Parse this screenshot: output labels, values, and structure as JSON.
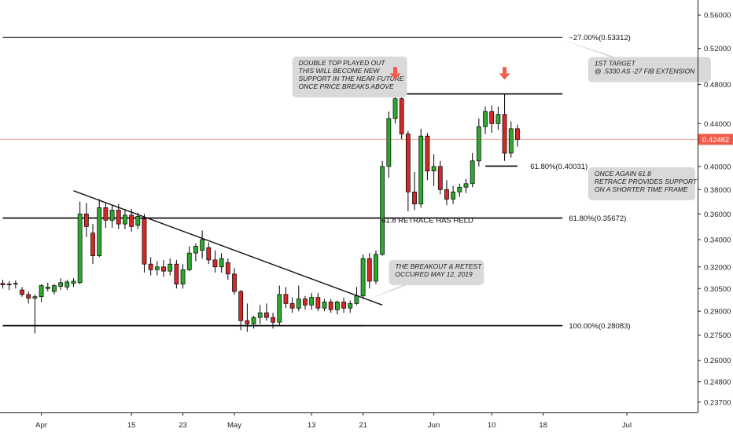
{
  "chart_data": {
    "type": "candlestick",
    "colors": {
      "up": "#2ea82e",
      "down": "#d62828",
      "candle_outline": "#000000",
      "current_price_line": "#f2a38f",
      "price_badge": "#f05a4a",
      "arrow": "#f05a4a",
      "note_bg": "#d9d9d9",
      "level_line": "#000000"
    },
    "y_axis": {
      "scale": "log",
      "range": [
        0.232,
        0.575
      ],
      "tick_labels": [
        "0.56000",
        "0.52000",
        "0.48000",
        "0.44000",
        "0.40000",
        "0.38000",
        "0.36000",
        "0.34000",
        "0.32000",
        "0.30500",
        "0.29000",
        "0.27500",
        "0.26000",
        "0.24800",
        "0.23700"
      ]
    },
    "x_axis": {
      "range": [
        "2019-03-26",
        "2019-07-12"
      ],
      "ticks": [
        {
          "label": "Apr",
          "date": "2019-04-01"
        },
        {
          "label": "15",
          "date": "2019-04-15"
        },
        {
          "label": "23",
          "date": "2019-04-23"
        },
        {
          "label": "May",
          "date": "2019-05-01"
        },
        {
          "label": "13",
          "date": "2019-05-13"
        },
        {
          "label": "21",
          "date": "2019-05-21"
        },
        {
          "label": "Jun",
          "date": "2019-06-01"
        },
        {
          "label": "10",
          "date": "2019-06-10"
        },
        {
          "label": "18",
          "date": "2019-06-18"
        },
        {
          "label": "Jul",
          "date": "2019-07-01"
        }
      ]
    },
    "current_price": {
      "label": "0.42482",
      "value": 0.42482
    },
    "candles": [
      {
        "date": "2019-03-26",
        "o": 0.3085,
        "h": 0.311,
        "l": 0.305,
        "c": 0.3075
      },
      {
        "date": "2019-03-27",
        "o": 0.3075,
        "h": 0.31,
        "l": 0.304,
        "c": 0.308
      },
      {
        "date": "2019-03-28",
        "o": 0.308,
        "h": 0.3105,
        "l": 0.305,
        "c": 0.3085
      },
      {
        "date": "2019-03-29",
        "o": 0.304,
        "h": 0.306,
        "l": 0.2995,
        "c": 0.301
      },
      {
        "date": "2019-03-30",
        "o": 0.301,
        "h": 0.303,
        "l": 0.295,
        "c": 0.2985
      },
      {
        "date": "2019-03-31",
        "o": 0.2985,
        "h": 0.301,
        "l": 0.276,
        "c": 0.2995
      },
      {
        "date": "2019-04-01",
        "o": 0.2995,
        "h": 0.308,
        "l": 0.296,
        "c": 0.307
      },
      {
        "date": "2019-04-02",
        "o": 0.305,
        "h": 0.309,
        "l": 0.303,
        "c": 0.306
      },
      {
        "date": "2019-04-03",
        "o": 0.303,
        "h": 0.308,
        "l": 0.301,
        "c": 0.307
      },
      {
        "date": "2019-04-04",
        "o": 0.3065,
        "h": 0.312,
        "l": 0.304,
        "c": 0.309
      },
      {
        "date": "2019-04-05",
        "o": 0.306,
        "h": 0.311,
        "l": 0.304,
        "c": 0.3095
      },
      {
        "date": "2019-04-06",
        "o": 0.3085,
        "h": 0.312,
        "l": 0.306,
        "c": 0.31
      },
      {
        "date": "2019-04-07",
        "o": 0.309,
        "h": 0.37,
        "l": 0.308,
        "c": 0.36
      },
      {
        "date": "2019-04-08",
        "o": 0.36,
        "h": 0.369,
        "l": 0.342,
        "c": 0.35
      },
      {
        "date": "2019-04-09",
        "o": 0.345,
        "h": 0.352,
        "l": 0.322,
        "c": 0.328
      },
      {
        "date": "2019-04-10",
        "o": 0.328,
        "h": 0.372,
        "l": 0.327,
        "c": 0.365
      },
      {
        "date": "2019-04-11",
        "o": 0.365,
        "h": 0.369,
        "l": 0.349,
        "c": 0.355
      },
      {
        "date": "2019-04-12",
        "o": 0.355,
        "h": 0.367,
        "l": 0.349,
        "c": 0.363
      },
      {
        "date": "2019-04-13",
        "o": 0.363,
        "h": 0.368,
        "l": 0.348,
        "c": 0.352
      },
      {
        "date": "2019-04-14",
        "o": 0.352,
        "h": 0.364,
        "l": 0.348,
        "c": 0.359
      },
      {
        "date": "2019-04-15",
        "o": 0.359,
        "h": 0.364,
        "l": 0.346,
        "c": 0.35
      },
      {
        "date": "2019-04-16",
        "o": 0.351,
        "h": 0.361,
        "l": 0.348,
        "c": 0.358
      },
      {
        "date": "2019-04-17",
        "o": 0.356,
        "h": 0.36,
        "l": 0.316,
        "c": 0.322
      },
      {
        "date": "2019-04-18",
        "o": 0.322,
        "h": 0.327,
        "l": 0.314,
        "c": 0.318
      },
      {
        "date": "2019-04-19",
        "o": 0.318,
        "h": 0.324,
        "l": 0.314,
        "c": 0.32
      },
      {
        "date": "2019-04-20",
        "o": 0.32,
        "h": 0.325,
        "l": 0.313,
        "c": 0.317
      },
      {
        "date": "2019-04-21",
        "o": 0.317,
        "h": 0.326,
        "l": 0.314,
        "c": 0.322
      },
      {
        "date": "2019-04-22",
        "o": 0.322,
        "h": 0.325,
        "l": 0.305,
        "c": 0.308
      },
      {
        "date": "2019-04-23",
        "o": 0.308,
        "h": 0.322,
        "l": 0.305,
        "c": 0.318
      },
      {
        "date": "2019-04-24",
        "o": 0.318,
        "h": 0.335,
        "l": 0.317,
        "c": 0.33
      },
      {
        "date": "2019-04-25",
        "o": 0.33,
        "h": 0.337,
        "l": 0.324,
        "c": 0.335
      },
      {
        "date": "2019-04-26",
        "o": 0.332,
        "h": 0.347,
        "l": 0.326,
        "c": 0.34
      },
      {
        "date": "2019-04-27",
        "o": 0.334,
        "h": 0.338,
        "l": 0.322,
        "c": 0.325
      },
      {
        "date": "2019-04-28",
        "o": 0.325,
        "h": 0.332,
        "l": 0.316,
        "c": 0.32
      },
      {
        "date": "2019-04-29",
        "o": 0.32,
        "h": 0.33,
        "l": 0.316,
        "c": 0.326
      },
      {
        "date": "2019-04-30",
        "o": 0.323,
        "h": 0.326,
        "l": 0.311,
        "c": 0.315
      },
      {
        "date": "2019-05-01",
        "o": 0.315,
        "h": 0.319,
        "l": 0.301,
        "c": 0.303
      },
      {
        "date": "2019-05-02",
        "o": 0.303,
        "h": 0.304,
        "l": 0.278,
        "c": 0.284
      },
      {
        "date": "2019-05-03",
        "o": 0.284,
        "h": 0.295,
        "l": 0.277,
        "c": 0.282
      },
      {
        "date": "2019-05-04",
        "o": 0.282,
        "h": 0.287,
        "l": 0.279,
        "c": 0.286
      },
      {
        "date": "2019-05-05",
        "o": 0.286,
        "h": 0.294,
        "l": 0.282,
        "c": 0.289
      },
      {
        "date": "2019-05-06",
        "o": 0.289,
        "h": 0.295,
        "l": 0.284,
        "c": 0.286
      },
      {
        "date": "2019-05-07",
        "o": 0.286,
        "h": 0.289,
        "l": 0.279,
        "c": 0.283
      },
      {
        "date": "2019-05-08",
        "o": 0.283,
        "h": 0.307,
        "l": 0.281,
        "c": 0.301
      },
      {
        "date": "2019-05-09",
        "o": 0.301,
        "h": 0.306,
        "l": 0.292,
        "c": 0.295
      },
      {
        "date": "2019-05-10",
        "o": 0.295,
        "h": 0.299,
        "l": 0.289,
        "c": 0.292
      },
      {
        "date": "2019-05-11",
        "o": 0.292,
        "h": 0.307,
        "l": 0.29,
        "c": 0.298
      },
      {
        "date": "2019-05-12",
        "o": 0.298,
        "h": 0.3,
        "l": 0.291,
        "c": 0.294
      },
      {
        "date": "2019-05-13",
        "o": 0.294,
        "h": 0.302,
        "l": 0.291,
        "c": 0.299
      },
      {
        "date": "2019-05-14",
        "o": 0.299,
        "h": 0.302,
        "l": 0.29,
        "c": 0.292
      },
      {
        "date": "2019-05-15",
        "o": 0.292,
        "h": 0.298,
        "l": 0.29,
        "c": 0.296
      },
      {
        "date": "2019-05-16",
        "o": 0.296,
        "h": 0.298,
        "l": 0.289,
        "c": 0.291
      },
      {
        "date": "2019-05-17",
        "o": 0.291,
        "h": 0.297,
        "l": 0.288,
        "c": 0.296
      },
      {
        "date": "2019-05-18",
        "o": 0.296,
        "h": 0.299,
        "l": 0.289,
        "c": 0.292
      },
      {
        "date": "2019-05-19",
        "o": 0.292,
        "h": 0.297,
        "l": 0.289,
        "c": 0.295
      },
      {
        "date": "2019-05-20",
        "o": 0.295,
        "h": 0.306,
        "l": 0.294,
        "c": 0.3
      },
      {
        "date": "2019-05-21",
        "o": 0.3,
        "h": 0.329,
        "l": 0.298,
        "c": 0.326
      },
      {
        "date": "2019-05-22",
        "o": 0.326,
        "h": 0.33,
        "l": 0.305,
        "c": 0.31
      },
      {
        "date": "2019-05-23",
        "o": 0.31,
        "h": 0.332,
        "l": 0.308,
        "c": 0.329
      },
      {
        "date": "2019-05-24",
        "o": 0.329,
        "h": 0.405,
        "l": 0.328,
        "c": 0.4
      },
      {
        "date": "2019-05-25",
        "o": 0.4,
        "h": 0.452,
        "l": 0.39,
        "c": 0.445
      },
      {
        "date": "2019-05-26",
        "o": 0.445,
        "h": 0.48,
        "l": 0.44,
        "c": 0.465
      },
      {
        "date": "2019-05-27",
        "o": 0.465,
        "h": 0.47,
        "l": 0.425,
        "c": 0.43
      },
      {
        "date": "2019-05-28",
        "o": 0.43,
        "h": 0.433,
        "l": 0.362,
        "c": 0.378
      },
      {
        "date": "2019-05-29",
        "o": 0.378,
        "h": 0.395,
        "l": 0.363,
        "c": 0.368
      },
      {
        "date": "2019-05-30",
        "o": 0.368,
        "h": 0.435,
        "l": 0.365,
        "c": 0.428
      },
      {
        "date": "2019-05-31",
        "o": 0.428,
        "h": 0.431,
        "l": 0.388,
        "c": 0.396
      },
      {
        "date": "2019-06-01",
        "o": 0.396,
        "h": 0.411,
        "l": 0.383,
        "c": 0.4
      },
      {
        "date": "2019-06-02",
        "o": 0.4,
        "h": 0.405,
        "l": 0.376,
        "c": 0.38
      },
      {
        "date": "2019-06-03",
        "o": 0.38,
        "h": 0.388,
        "l": 0.367,
        "c": 0.372
      },
      {
        "date": "2019-06-04",
        "o": 0.372,
        "h": 0.383,
        "l": 0.368,
        "c": 0.378
      },
      {
        "date": "2019-06-05",
        "o": 0.378,
        "h": 0.385,
        "l": 0.374,
        "c": 0.382
      },
      {
        "date": "2019-06-06",
        "o": 0.382,
        "h": 0.389,
        "l": 0.377,
        "c": 0.385
      },
      {
        "date": "2019-06-07",
        "o": 0.385,
        "h": 0.412,
        "l": 0.382,
        "c": 0.405
      },
      {
        "date": "2019-06-08",
        "o": 0.405,
        "h": 0.445,
        "l": 0.4,
        "c": 0.437
      },
      {
        "date": "2019-06-09",
        "o": 0.437,
        "h": 0.457,
        "l": 0.43,
        "c": 0.452
      },
      {
        "date": "2019-06-10",
        "o": 0.452,
        "h": 0.458,
        "l": 0.431,
        "c": 0.44
      },
      {
        "date": "2019-06-11",
        "o": 0.44,
        "h": 0.457,
        "l": 0.434,
        "c": 0.449
      },
      {
        "date": "2019-06-12",
        "o": 0.449,
        "h": 0.47,
        "l": 0.405,
        "c": 0.412
      },
      {
        "date": "2019-06-13",
        "o": 0.412,
        "h": 0.442,
        "l": 0.408,
        "c": 0.435
      },
      {
        "date": "2019-06-14",
        "o": 0.435,
        "h": 0.439,
        "l": 0.418,
        "c": 0.4248
      }
    ],
    "levels": [
      {
        "label": "−27.00%(0.53312)",
        "value": 0.53312,
        "from": "2019-03-26",
        "to": "2019-06-21",
        "label_at": "2019-06-22"
      },
      {
        "label": "61.80%(0.35672)",
        "value": 0.35672,
        "from": "2019-03-26",
        "to": "2019-06-21",
        "label_at": "2019-06-22"
      },
      {
        "label": "100.00%(0.28083)",
        "value": 0.28083,
        "from": "2019-03-26",
        "to": "2019-06-21",
        "label_at": "2019-06-22"
      },
      {
        "label": "61.80%(0.40031)",
        "value": 0.40031,
        "from": "2019-06-09",
        "to": "2019-06-14",
        "label_at": "2019-06-16"
      },
      {
        "label": "",
        "value": 0.47,
        "from": "2019-05-26",
        "to": "2019-06-21",
        "label_at": ""
      },
      {
        "label": "",
        "value": 0.2808,
        "from": "2019-03-26",
        "to": "2019-05-21",
        "label_at": ""
      }
    ],
    "trendline": {
      "from": {
        "date": "2019-04-06",
        "value": 0.379
      },
      "to": {
        "date": "2019-05-24",
        "value": 0.294
      }
    },
    "arrows": [
      {
        "date": "2019-05-26",
        "value": 0.492
      },
      {
        "date": "2019-06-12",
        "value": 0.492
      }
    ],
    "annotations": [
      {
        "text": "61.8 RETRACE HAS HELD",
        "date": "2019-05-31",
        "value": 0.353,
        "style": "plain"
      }
    ],
    "notes": [
      {
        "lines": [
          "DOUBLE TOP PLAYED OUT",
          "THIS WILL BECOME NEW",
          "SUPPORT IN THE NEAR FUTURE",
          "ONCE PRICE BREAKS ABOVE"
        ],
        "date": "2019-05-10",
        "value": 0.488,
        "pointer": {
          "date": "2019-05-26",
          "value": 0.476
        }
      },
      {
        "lines": [
          "1ST TARGET",
          "@ .5330 AS -27 FIB EXTENSION"
        ],
        "date": "2019-06-25",
        "value": 0.496,
        "pointer": {
          "date": "2019-06-21",
          "value": 0.53
        }
      },
      {
        "lines": [
          "ONCE AGAIN 61.8",
          "RETRACE PROVIDES SUPPORT",
          "ON A SHORTER TIME FRAME"
        ],
        "date": "2019-06-25",
        "value": 0.385,
        "pointer": {
          "date": "2019-06-22",
          "value": 0.4
        }
      },
      {
        "lines": [
          "THE BREAKOUT & RETEST",
          "OCCURED MAY 12, 2019"
        ],
        "date": "2019-05-25",
        "value": 0.316,
        "pointer": {
          "date": "2019-05-22",
          "value": 0.298
        }
      }
    ]
  }
}
